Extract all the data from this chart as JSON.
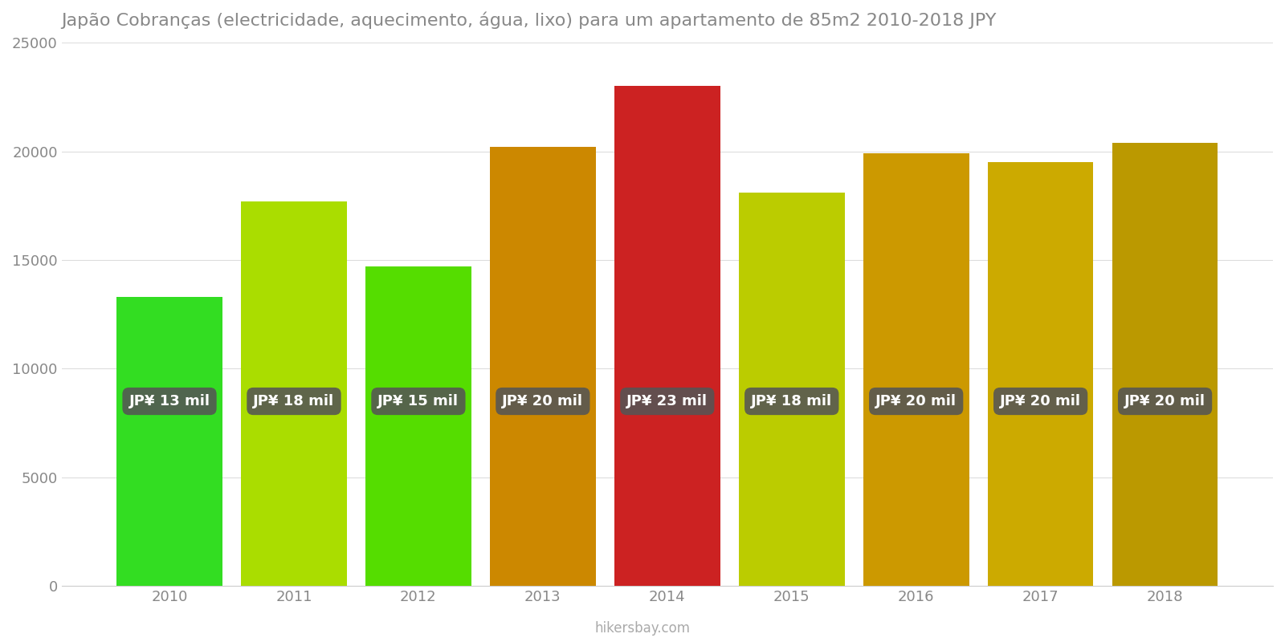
{
  "years": [
    2010,
    2011,
    2012,
    2013,
    2014,
    2015,
    2016,
    2017,
    2018
  ],
  "values": [
    13300,
    17700,
    14700,
    20200,
    23000,
    18100,
    19900,
    19500,
    20400
  ],
  "bar_colors": [
    "#33dd22",
    "#aadd00",
    "#55dd00",
    "#cc8800",
    "#cc2222",
    "#bbcc00",
    "#cc9900",
    "#ccaa00",
    "#bb9900"
  ],
  "labels": [
    "JP¥ 13 mil",
    "JP¥ 18 mil",
    "JP¥ 15 mil",
    "JP¥ 20 mil",
    "JP¥ 23 mil",
    "JP¥ 18 mil",
    "JP¥ 20 mil",
    "JP¥ 20 mil",
    "JP¥ 20 mil"
  ],
  "title": "Japão Cobranças (electricidade, aquecimento, água, lixo) para um apartamento de 85m2 2010-2018 JPY",
  "ylim": [
    0,
    25000
  ],
  "yticks": [
    0,
    5000,
    10000,
    15000,
    20000,
    25000
  ],
  "background_color": "#ffffff",
  "label_bg_color": "#555555",
  "label_text_color": "#ffffff",
  "footer_text": "hikersbay.com",
  "title_fontsize": 16,
  "label_fontsize": 13,
  "tick_fontsize": 13,
  "footer_fontsize": 12,
  "bar_width": 0.85
}
